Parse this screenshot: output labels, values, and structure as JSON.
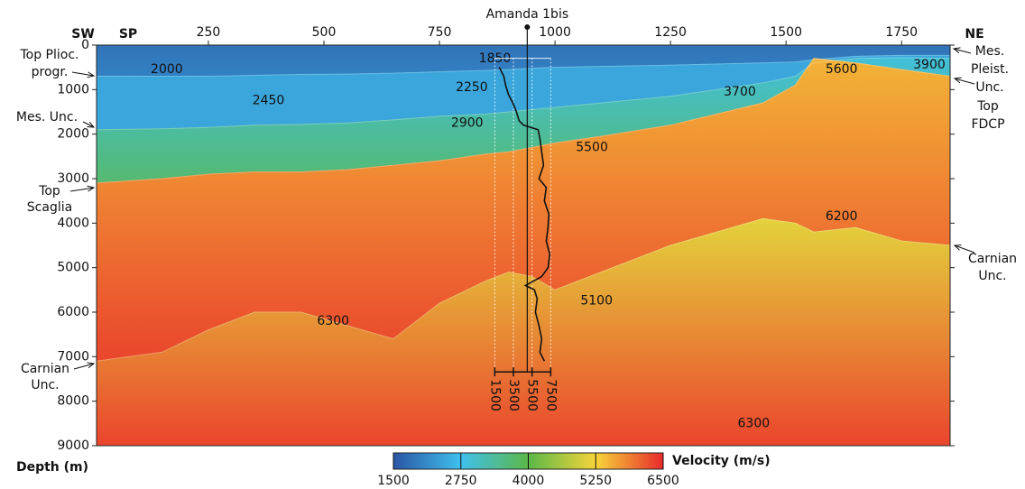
{
  "chart_data": {
    "type": "section",
    "x_label": "SP",
    "left_label": "SW",
    "right_label": "NE",
    "y_label": "Depth (m)",
    "xlim": [
      8,
      1855
    ],
    "xticks": [
      250,
      500,
      750,
      1000,
      1250,
      1500,
      1750
    ],
    "ylim": [
      0,
      9000
    ],
    "yticks": [
      0,
      1000,
      2000,
      3000,
      4000,
      5000,
      6000,
      7000,
      8000,
      9000
    ],
    "layer_x": [
      8,
      150,
      250,
      350,
      450,
      550,
      650,
      750,
      850,
      900,
      950,
      1000,
      1100,
      1250,
      1450,
      1520,
      1560,
      1650,
      1750,
      1855
    ],
    "layers": [
      {
        "velocity": [
          1850,
          2000
        ],
        "base": [
          700,
          700,
          700,
          680,
          660,
          650,
          630,
          600,
          570,
          550,
          520,
          500,
          480,
          450,
          400,
          380,
          330,
          250,
          230,
          230
        ]
      },
      {
        "velocity": [
          2450,
          2450
        ],
        "base": [
          1900,
          1880,
          1850,
          1800,
          1780,
          1750,
          1680,
          1600,
          1550,
          1500,
          1450,
          1400,
          1300,
          1150,
          850,
          700,
          400,
          300,
          280,
          300
        ]
      },
      {
        "velocity": [
          2900,
          3700
        ],
        "base": [
          3100,
          3000,
          2900,
          2850,
          2850,
          2800,
          2700,
          2600,
          2450,
          2400,
          2300,
          2200,
          2050,
          1800,
          1300,
          900,
          300,
          400,
          550,
          700
        ]
      },
      {
        "velocity": [
          5500,
          6300
        ],
        "base": [
          7100,
          6900,
          6400,
          6000,
          6000,
          6300,
          6600,
          5800,
          5300,
          5100,
          5200,
          5500,
          5100,
          4500,
          3900,
          4000,
          4200,
          4100,
          4400,
          4500
        ]
      },
      {
        "velocity": [
          5100,
          6300
        ]
      }
    ],
    "velocity_labels": [
      {
        "x": 160,
        "y": 550,
        "value": 2000
      },
      {
        "x": 870,
        "y": 300,
        "value": 1850
      },
      {
        "x": 380,
        "y": 1250,
        "value": 2450
      },
      {
        "x": 820,
        "y": 950,
        "value": 2250
      },
      {
        "x": 810,
        "y": 1750,
        "value": 2900
      },
      {
        "x": 1080,
        "y": 2300,
        "value": 5500
      },
      {
        "x": 1400,
        "y": 1050,
        "value": 3700
      },
      {
        "x": 1620,
        "y": 550,
        "value": 5600
      },
      {
        "x": 1810,
        "y": 450,
        "value": 3900
      },
      {
        "x": 1620,
        "y": 3850,
        "value": 6200
      },
      {
        "x": 520,
        "y": 6200,
        "value": 6300
      },
      {
        "x": 1090,
        "y": 5750,
        "value": 5100
      },
      {
        "x": 1430,
        "y": 8500,
        "value": 6300
      }
    ],
    "well": {
      "name": "Amanda 1bis",
      "x": 940,
      "depth": [
        500,
        700,
        900,
        1100,
        1300,
        1500,
        1700,
        1800,
        1900,
        2100,
        2400,
        2700,
        3000,
        3200,
        3500,
        3800,
        4100,
        4400,
        4700,
        5000,
        5200,
        5400,
        5500,
        5700,
        6000,
        6300,
        6600,
        6900,
        7100
      ],
      "velocity": [
        1980,
        2470,
        2660,
        2950,
        3440,
        3820,
        4110,
        4600,
        6150,
        6340,
        6530,
        6730,
        6240,
        7020,
        6820,
        7310,
        7210,
        7020,
        7400,
        7210,
        6530,
        4790,
        5760,
        6050,
        5860,
        6240,
        6530,
        6340,
        6820
      ],
      "scale_lim": [
        1500,
        7500
      ],
      "scale_ticks": [
        1500,
        3500,
        5500,
        7500
      ]
    },
    "colorbar": {
      "label": "Velocity (m/s)",
      "ticks": [
        1500,
        2750,
        4000,
        5250,
        6500
      ],
      "colors": [
        "#2b55a5",
        "#3fc0ee",
        "#5cb848",
        "#f6d53a",
        "#e8292a"
      ]
    },
    "annotations_left": [
      {
        "lines": [
          "Top Plioc.",
          "progr."
        ]
      },
      {
        "lines": [
          "Mes. Unc."
        ]
      },
      {
        "lines": [
          "Top",
          "Scaglia"
        ]
      },
      {
        "lines": [
          "Carnian",
          "Unc."
        ]
      }
    ],
    "annotations_right": [
      {
        "lines": [
          "Mes.",
          "Pleist.",
          "Unc."
        ]
      },
      {
        "lines": [
          "Top",
          "FDCP"
        ]
      },
      {
        "lines": [
          "Carnian",
          "Unc."
        ]
      }
    ]
  }
}
